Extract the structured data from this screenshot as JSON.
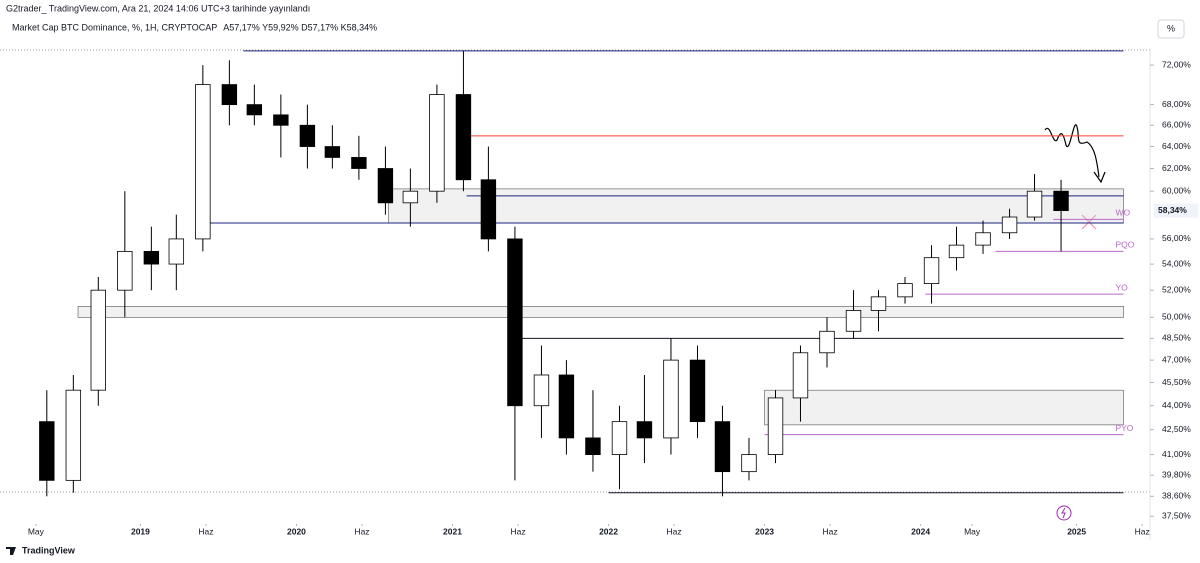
{
  "header": {
    "published": "G2trader_ TradingView.com, Ara 21, 2024 14:06 UTC+3 tarihinde yayınlandı",
    "symbol": "Market Cap BTC Dominance, %, 1H, CRYPTOCAP",
    "ohlc": "A57,17% Y59,92% D57,17% K58,34%",
    "scale_button": "%"
  },
  "footer": {
    "brand": "TradingView"
  },
  "chart_data": {
    "type": "candlestick",
    "log_scale": true,
    "xlim": [
      2018.1,
      2025.47
    ],
    "ylim": [
      37.3,
      73.8
    ],
    "xticks": [
      {
        "value": 2018.33,
        "label": "May"
      },
      {
        "value": 2019,
        "label": "2019"
      },
      {
        "value": 2019.42,
        "label": "Haz"
      },
      {
        "value": 2020,
        "label": "2020"
      },
      {
        "value": 2020.42,
        "label": "Haz"
      },
      {
        "value": 2021,
        "label": "2021"
      },
      {
        "value": 2021.42,
        "label": "Haz"
      },
      {
        "value": 2022,
        "label": "2022"
      },
      {
        "value": 2022.42,
        "label": "Haz"
      },
      {
        "value": 2023,
        "label": "2023"
      },
      {
        "value": 2023.42,
        "label": "Haz"
      },
      {
        "value": 2024,
        "label": "2024"
      },
      {
        "value": 2024.33,
        "label": "May"
      },
      {
        "value": 2025,
        "label": "2025"
      },
      {
        "value": 2025.42,
        "label": "Haz"
      }
    ],
    "yticks": [
      {
        "value": 72,
        "label": "72,00%"
      },
      {
        "value": 68,
        "label": "68,00%"
      },
      {
        "value": 66,
        "label": "66,00%"
      },
      {
        "value": 64,
        "label": "64,00%"
      },
      {
        "value": 62,
        "label": "62,00%"
      },
      {
        "value": 60,
        "label": "60,00%"
      },
      {
        "value": 56,
        "label": "56,00%"
      },
      {
        "value": 54,
        "label": "54,00%"
      },
      {
        "value": 52,
        "label": "52,00%"
      },
      {
        "value": 50,
        "label": "50,00%"
      },
      {
        "value": 48.5,
        "label": "48,50%"
      },
      {
        "value": 47,
        "label": "47,00%"
      },
      {
        "value": 45.5,
        "label": "45,50%"
      },
      {
        "value": 44,
        "label": "44,00%"
      },
      {
        "value": 42.5,
        "label": "42,50%"
      },
      {
        "value": 41,
        "label": "41,00%"
      },
      {
        "value": 39.8,
        "label": "39,80%"
      },
      {
        "value": 38.6,
        "label": "38,60%"
      },
      {
        "value": 37.5,
        "label": "37,50%"
      }
    ],
    "last_price": {
      "value": 58.34,
      "label": "58,34%"
    },
    "up_color": "#ffffff",
    "down_color": "#000000",
    "candles": {
      "x": [
        2018.4,
        2018.57,
        2018.73,
        2018.9,
        2019.07,
        2019.23,
        2019.4,
        2019.57,
        2019.73,
        2019.9,
        2020.07,
        2020.23,
        2020.4,
        2020.57,
        2020.73,
        2020.9,
        2021.07,
        2021.23,
        2021.4,
        2021.57,
        2021.73,
        2021.9,
        2022.07,
        2022.23,
        2022.4,
        2022.57,
        2022.73,
        2022.9,
        2023.07,
        2023.23,
        2023.4,
        2023.57,
        2023.73,
        2023.9,
        2024.07,
        2024.23,
        2024.4,
        2024.57,
        2024.73,
        2024.9
      ],
      "open": [
        43,
        39.5,
        45,
        52,
        55,
        54,
        56,
        70,
        68,
        67,
        66,
        64,
        63,
        62,
        59,
        60,
        69,
        61,
        56,
        44,
        46,
        42,
        41,
        43,
        42,
        47,
        43,
        40,
        41,
        44.5,
        47.5,
        49,
        50.5,
        51.5,
        52.5,
        54.5,
        55.5,
        56.5,
        57.8,
        60
      ],
      "high": [
        45,
        46,
        53,
        60,
        57,
        58,
        72,
        72.5,
        70,
        69,
        68,
        66,
        65,
        64,
        62,
        70,
        73.5,
        64,
        57,
        48,
        47,
        45,
        44,
        46,
        48.5,
        48,
        44,
        42,
        45,
        48,
        50,
        52,
        52,
        53,
        55.5,
        57,
        57.5,
        58.5,
        61.5,
        61
      ],
      "low": [
        38.6,
        38.8,
        44,
        50,
        52,
        52,
        55,
        66,
        66,
        63,
        62,
        62,
        61,
        58,
        57,
        59,
        60,
        55,
        39.5,
        42,
        41,
        40,
        39,
        40.5,
        41,
        42,
        38.6,
        39.5,
        40.5,
        43,
        46.5,
        48.5,
        49,
        51,
        51,
        53.5,
        54.8,
        56,
        57.5,
        55
      ],
      "close": [
        39.5,
        45,
        52,
        55,
        54,
        56,
        70,
        68,
        67,
        66,
        64,
        63,
        62,
        59,
        60,
        69,
        61,
        56,
        44,
        46,
        42,
        41,
        43,
        42,
        47,
        43,
        40,
        41,
        44.5,
        47.5,
        49,
        50.5,
        51.5,
        52.5,
        54.5,
        55.5,
        56.5,
        57.8,
        60,
        58.34
      ]
    },
    "zones": [
      {
        "low": 57.3,
        "high": 60.2,
        "start": 2020.59,
        "end": 2025.3
      },
      {
        "low": 50,
        "high": 50.8,
        "start": 2018.6,
        "end": 2025.3
      },
      {
        "low": 42.8,
        "high": 45,
        "start": 2023.0,
        "end": 2025.3
      }
    ],
    "levels": [
      {
        "value": 73.5,
        "start": 2019.66,
        "end": 2025.3,
        "color": "#1a237e"
      },
      {
        "value": 65,
        "start": 2021.09,
        "end": 2025.3,
        "color": "#f44336"
      },
      {
        "value": 59.6,
        "start": 2021.09,
        "end": 2025.3,
        "color": "#1a237e"
      },
      {
        "value": 57.3,
        "start": 2019.38,
        "end": 2025.3,
        "color": "#1a237e"
      },
      {
        "value": 48.5,
        "start": 2021.36,
        "end": 2025.3,
        "color": "#131722"
      },
      {
        "value": 38.8,
        "start": 2022.0,
        "end": 2025.3,
        "color": "#131722"
      },
      {
        "value": 57.6,
        "start": 2024.85,
        "end": 2025.3,
        "color": "#ba68c8",
        "label": "WO"
      },
      {
        "value": 55,
        "start": 2024.48,
        "end": 2025.3,
        "color": "#ba68c8",
        "label": "PQO"
      },
      {
        "value": 51.7,
        "start": 2024.03,
        "end": 2025.3,
        "color": "#ba68c8",
        "label": "YO"
      },
      {
        "value": 42.2,
        "start": 2023.0,
        "end": 2025.3,
        "color": "#ba68c8",
        "label": "PYO"
      }
    ]
  }
}
